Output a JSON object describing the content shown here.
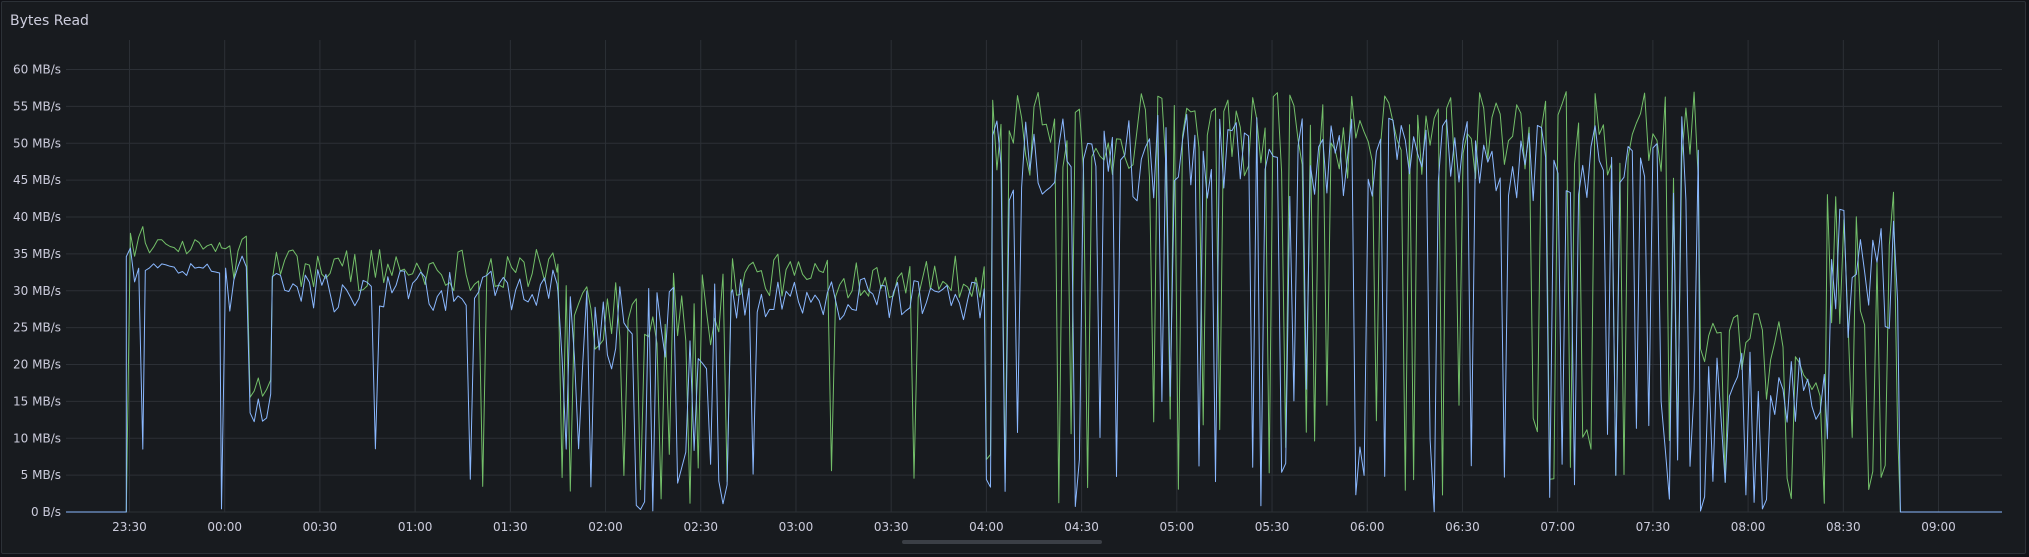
{
  "panel": {
    "title": "Bytes Read"
  },
  "colors": {
    "background": "#181b1f",
    "grid": "#2c3036",
    "series_green": "#73bf69",
    "series_blue": "#8ab8ff",
    "text": "#ccccdc"
  },
  "chart_data": {
    "type": "line",
    "title": "Bytes Read",
    "x_unit": "time (HH:MM)",
    "y_unit": "MB/s",
    "ylim": [
      0,
      64
    ],
    "xlim": [
      "23:10",
      "09:20"
    ],
    "grid": true,
    "legend": "none",
    "y_ticks": [
      "0 B/s",
      "5 MB/s",
      "10 MB/s",
      "15 MB/s",
      "20 MB/s",
      "25 MB/s",
      "30 MB/s",
      "35 MB/s",
      "40 MB/s",
      "45 MB/s",
      "50 MB/s",
      "55 MB/s",
      "60 MB/s"
    ],
    "y_tick_values": [
      0,
      5,
      10,
      15,
      20,
      25,
      30,
      35,
      40,
      45,
      50,
      55,
      60
    ],
    "x_ticks": [
      "23:30",
      "00:00",
      "00:30",
      "01:00",
      "01:30",
      "02:00",
      "02:30",
      "03:00",
      "03:30",
      "04:00",
      "04:30",
      "05:00",
      "05:30",
      "06:00",
      "06:30",
      "07:00",
      "07:30",
      "08:00",
      "08:30",
      "09:00"
    ],
    "segments": [
      {
        "start": "23:10",
        "end": "23:29",
        "level": 0,
        "spread": 0,
        "drop": 0
      },
      {
        "start": "23:29",
        "end": "23:35",
        "level": 34,
        "spread": 3,
        "drop": 0.1
      },
      {
        "start": "23:35",
        "end": "23:59",
        "level": 33,
        "spread": 1,
        "drop": 0
      },
      {
        "start": "23:59",
        "end": "00:08",
        "level": 31,
        "spread": 4,
        "drop": 0.1
      },
      {
        "start": "00:08",
        "end": "00:15",
        "level": 14,
        "spread": 2,
        "drop": 0
      },
      {
        "start": "00:15",
        "end": "01:45",
        "level": 30,
        "spread": 3,
        "drop": 0.05
      },
      {
        "start": "01:45",
        "end": "02:40",
        "level": 25,
        "spread": 6,
        "drop": 0.3
      },
      {
        "start": "02:40",
        "end": "04:00",
        "level": 29,
        "spread": 3,
        "drop": 0.04
      },
      {
        "start": "04:00",
        "end": "04:02",
        "level": 5,
        "spread": 2,
        "drop": 0
      },
      {
        "start": "04:02",
        "end": "07:45",
        "level": 48,
        "spread": 6,
        "drop": 0.22
      },
      {
        "start": "07:45",
        "end": "08:25",
        "level": 18,
        "spread": 6,
        "drop": 0.2
      },
      {
        "start": "08:25",
        "end": "08:48",
        "level": 32,
        "spread": 10,
        "drop": 0.25
      },
      {
        "start": "08:48",
        "end": "09:20",
        "level": 0,
        "spread": 0,
        "drop": 0
      }
    ],
    "series": [
      {
        "color": "#73bf69",
        "offset": 3
      },
      {
        "color": "#8ab8ff",
        "offset": 0
      }
    ]
  }
}
